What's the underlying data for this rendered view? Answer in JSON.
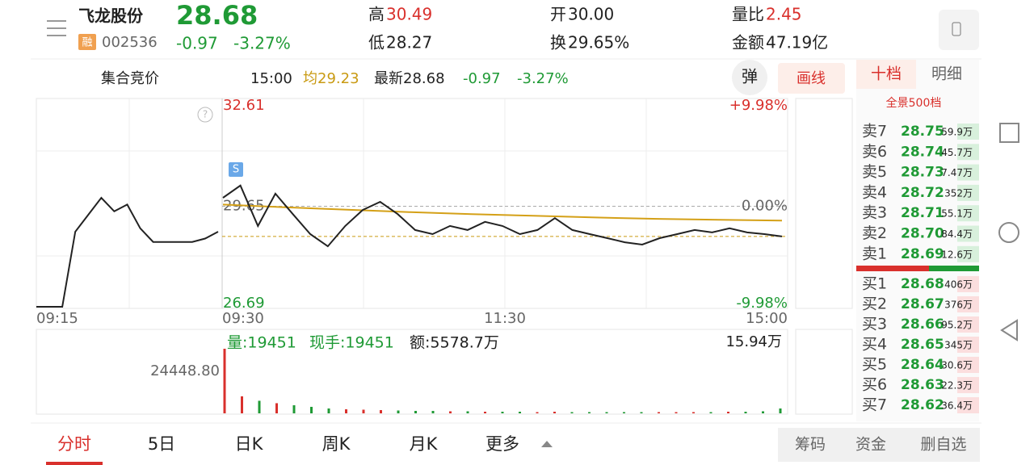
{
  "header": {
    "name": "飞龙股份",
    "price": "28.68",
    "badge": "融",
    "code": "002536",
    "change": "-0.97",
    "change_pct": "-3.27%",
    "stats": [
      {
        "label": "高",
        "value": "30.49"
      },
      {
        "label": "开",
        "value": "30.00"
      },
      {
        "label": "量比",
        "value": "2.45"
      },
      {
        "label": "低",
        "value": "28.27"
      },
      {
        "label": "换",
        "value": "29.65%"
      },
      {
        "label": "金额",
        "value": "47.19亿"
      }
    ]
  },
  "subbar": {
    "mode": "集合竞价",
    "time": "15:00",
    "avg": "均29.23",
    "latest": "最新28.68",
    "change": "-0.97",
    "change_pct": "-3.27%",
    "button_pop": "弹",
    "button_draw": "画线"
  },
  "chart": {
    "ylim": [
      26.69,
      32.61
    ],
    "prev_close": 29.65,
    "pct_top": "+9.98%",
    "pct_mid": "0.00%",
    "pct_bottom": "-9.98%",
    "times": [
      "09:15",
      "09:30",
      "11:30",
      "15:00"
    ],
    "auction": [
      26.69,
      26.69,
      26.69,
      28.9,
      29.4,
      29.9,
      29.5,
      29.7,
      29.0,
      28.6,
      28.6,
      28.6,
      28.6,
      28.7,
      28.9
    ],
    "price": [
      29.9,
      30.26,
      29.07,
      30.02,
      29.42,
      28.83,
      28.47,
      29.07,
      29.54,
      29.78,
      29.42,
      28.95,
      28.83,
      29.07,
      28.95,
      29.19,
      29.07,
      28.83,
      28.95,
      29.3,
      28.95,
      28.83,
      28.71,
      28.59,
      28.52,
      28.71,
      28.83,
      28.95,
      28.88,
      29.0,
      28.88,
      28.83,
      28.76
    ],
    "avg": [
      29.7,
      29.62,
      29.55,
      29.48,
      29.42,
      29.37,
      29.32,
      29.28,
      29.25,
      29.23
    ],
    "volume_info": [
      "量:19451",
      "现手:19451",
      "额:5578.7万"
    ],
    "auction_volume_label": "24448.80",
    "volume_max": {
      "value": 15.94,
      "label": "15.94万"
    },
    "volume": [
      15.94,
      4.2,
      3.1,
      2.5,
      2.0,
      1.6,
      1.2,
      1.0,
      0.9,
      0.8,
      0.7,
      0.6,
      0.6,
      0.5,
      0.5,
      0.4,
      0.4,
      0.4,
      0.3,
      0.4,
      0.3,
      0.3,
      0.3,
      0.3,
      0.3,
      0.3,
      0.3,
      0.3,
      0.3,
      0.4,
      0.4,
      0.5,
      1.2
    ]
  },
  "orderbook": {
    "tab_active": "十档",
    "tab_other": "明细",
    "full": "全景500档",
    "sell": [
      {
        "label": "卖7",
        "price": "28.75",
        "vol": "59.9万"
      },
      {
        "label": "卖6",
        "price": "28.74",
        "vol": "45.7万"
      },
      {
        "label": "卖5",
        "price": "28.73",
        "vol": "7.47万"
      },
      {
        "label": "卖4",
        "price": "28.72",
        "vol": "352万"
      },
      {
        "label": "卖3",
        "price": "28.71",
        "vol": "55.1万"
      },
      {
        "label": "卖2",
        "price": "28.70",
        "vol": "84.4万"
      },
      {
        "label": "卖1",
        "price": "28.69",
        "vol": "12.6万"
      }
    ],
    "buy": [
      {
        "label": "买1",
        "price": "28.68",
        "vol": "406万"
      },
      {
        "label": "买2",
        "price": "28.67",
        "vol": "376万"
      },
      {
        "label": "买3",
        "price": "28.66",
        "vol": "95.2万"
      },
      {
        "label": "买4",
        "price": "28.65",
        "vol": "345万"
      },
      {
        "label": "买5",
        "price": "28.64",
        "vol": "30.6万"
      },
      {
        "label": "买6",
        "price": "28.63",
        "vol": "22.3万"
      },
      {
        "label": "买7",
        "price": "28.62",
        "vol": "36.4万"
      }
    ]
  },
  "tabs": [
    "分时",
    "5日",
    "日K",
    "周K",
    "月K",
    "更多"
  ],
  "actions": [
    "筹码",
    "资金",
    "删自选"
  ]
}
